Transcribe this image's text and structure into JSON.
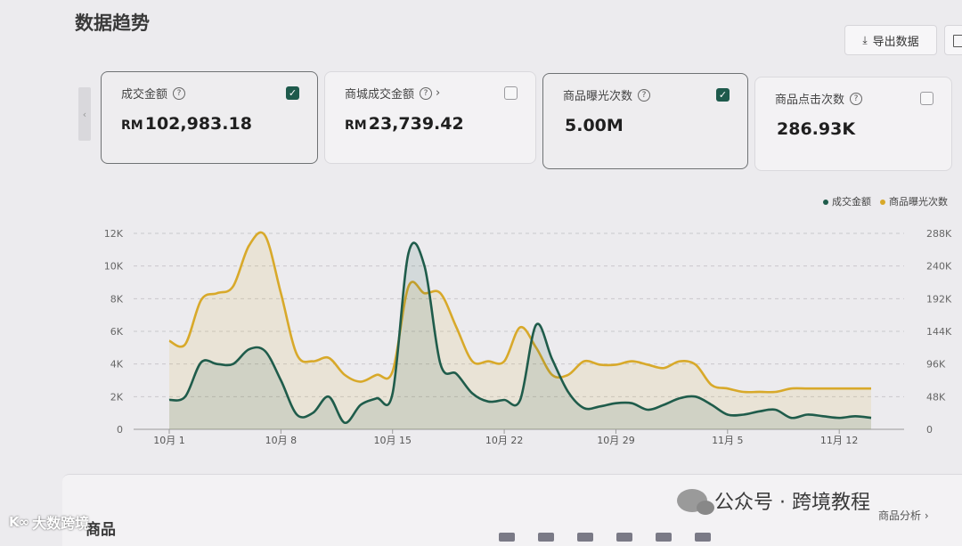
{
  "header": {
    "title": "数据趋势",
    "export_label": "导出数据"
  },
  "cards": [
    {
      "label": "成交金额",
      "currency": "RM",
      "value": "102,983.18",
      "checked": true
    },
    {
      "label": "商城成交金额",
      "currency": "RM",
      "value": "23,739.42",
      "checked": false
    },
    {
      "label": "商品曝光次数",
      "currency": "",
      "value": "5.00M",
      "checked": true
    },
    {
      "label": "商品点击次数",
      "currency": "",
      "value": "286.93K",
      "checked": false
    }
  ],
  "legend": [
    {
      "name": "成交金额",
      "color": "#1f5c4b"
    },
    {
      "name": "商品曝光次数",
      "color": "#d8a92a"
    }
  ],
  "chart_data": {
    "type": "line",
    "x_tick_labels": [
      "10月 1",
      "10月 8",
      "10月 15",
      "10月 22",
      "10月 29",
      "11月 5",
      "11月 12"
    ],
    "x": [
      "10月 1",
      "10月 2",
      "10月 3",
      "10月 4",
      "10月 5",
      "10月 6",
      "10月 7",
      "10月 8",
      "10月 9",
      "10月 10",
      "10月 11",
      "10月 12",
      "10月 13",
      "10月 14",
      "10月 15",
      "10月 16",
      "10月 17",
      "10月 18",
      "10月 19",
      "10月 20",
      "10月 21",
      "10月 22",
      "10月 23",
      "10月 24",
      "10月 25",
      "10月 26",
      "10月 27",
      "10月 28",
      "10月 29",
      "10月 30",
      "10月 31",
      "11月 1",
      "11月 2",
      "11月 3",
      "11月 4",
      "11月 5",
      "11月 6",
      "11月 7",
      "11月 8",
      "11月 9",
      "11月 10",
      "11月 11",
      "11月 12",
      "11月 13",
      "11月 14"
    ],
    "series": [
      {
        "name": "成交金额",
        "axis": "left",
        "color": "#1f5c4b",
        "values": [
          1800,
          2000,
          4100,
          4000,
          4000,
          4900,
          4800,
          3000,
          900,
          1000,
          2000,
          400,
          1500,
          1900,
          2200,
          10800,
          10000,
          4000,
          3400,
          2200,
          1700,
          1800,
          1800,
          6400,
          4300,
          2300,
          1300,
          1400,
          1600,
          1600,
          1200,
          1500,
          1900,
          2000,
          1500,
          900,
          900,
          1100,
          1200,
          700,
          900,
          800,
          700,
          800,
          700
        ]
      },
      {
        "name": "商品曝光次数",
        "axis": "right",
        "color": "#d8a92a",
        "values": [
          130000,
          125000,
          190000,
          200000,
          210000,
          270000,
          285000,
          200000,
          110000,
          100000,
          105000,
          80000,
          70000,
          80000,
          85000,
          210000,
          200000,
          200000,
          150000,
          100000,
          100000,
          100000,
          150000,
          120000,
          80000,
          80000,
          100000,
          95000,
          95000,
          100000,
          95000,
          90000,
          100000,
          95000,
          65000,
          60000,
          55000,
          55000,
          55000,
          60000,
          60000,
          60000,
          60000,
          60000,
          60000
        ]
      }
    ],
    "y_left": {
      "ticks": [
        "0",
        "2K",
        "4K",
        "6K",
        "8K",
        "10K",
        "12K"
      ],
      "range": [
        0,
        12000
      ]
    },
    "y_right": {
      "ticks": [
        "0",
        "48K",
        "96K",
        "144K",
        "192K",
        "240K",
        "288K"
      ],
      "range": [
        0,
        288000
      ]
    },
    "grid": true,
    "legend_position": "top-right"
  },
  "bottom": {
    "section_title": "商品",
    "link_label": "商品分析 ›"
  },
  "watermark": {
    "text": "公众号 · 跨境教程"
  },
  "brand": {
    "text": "大数跨境",
    "logo_text": "K∞"
  }
}
